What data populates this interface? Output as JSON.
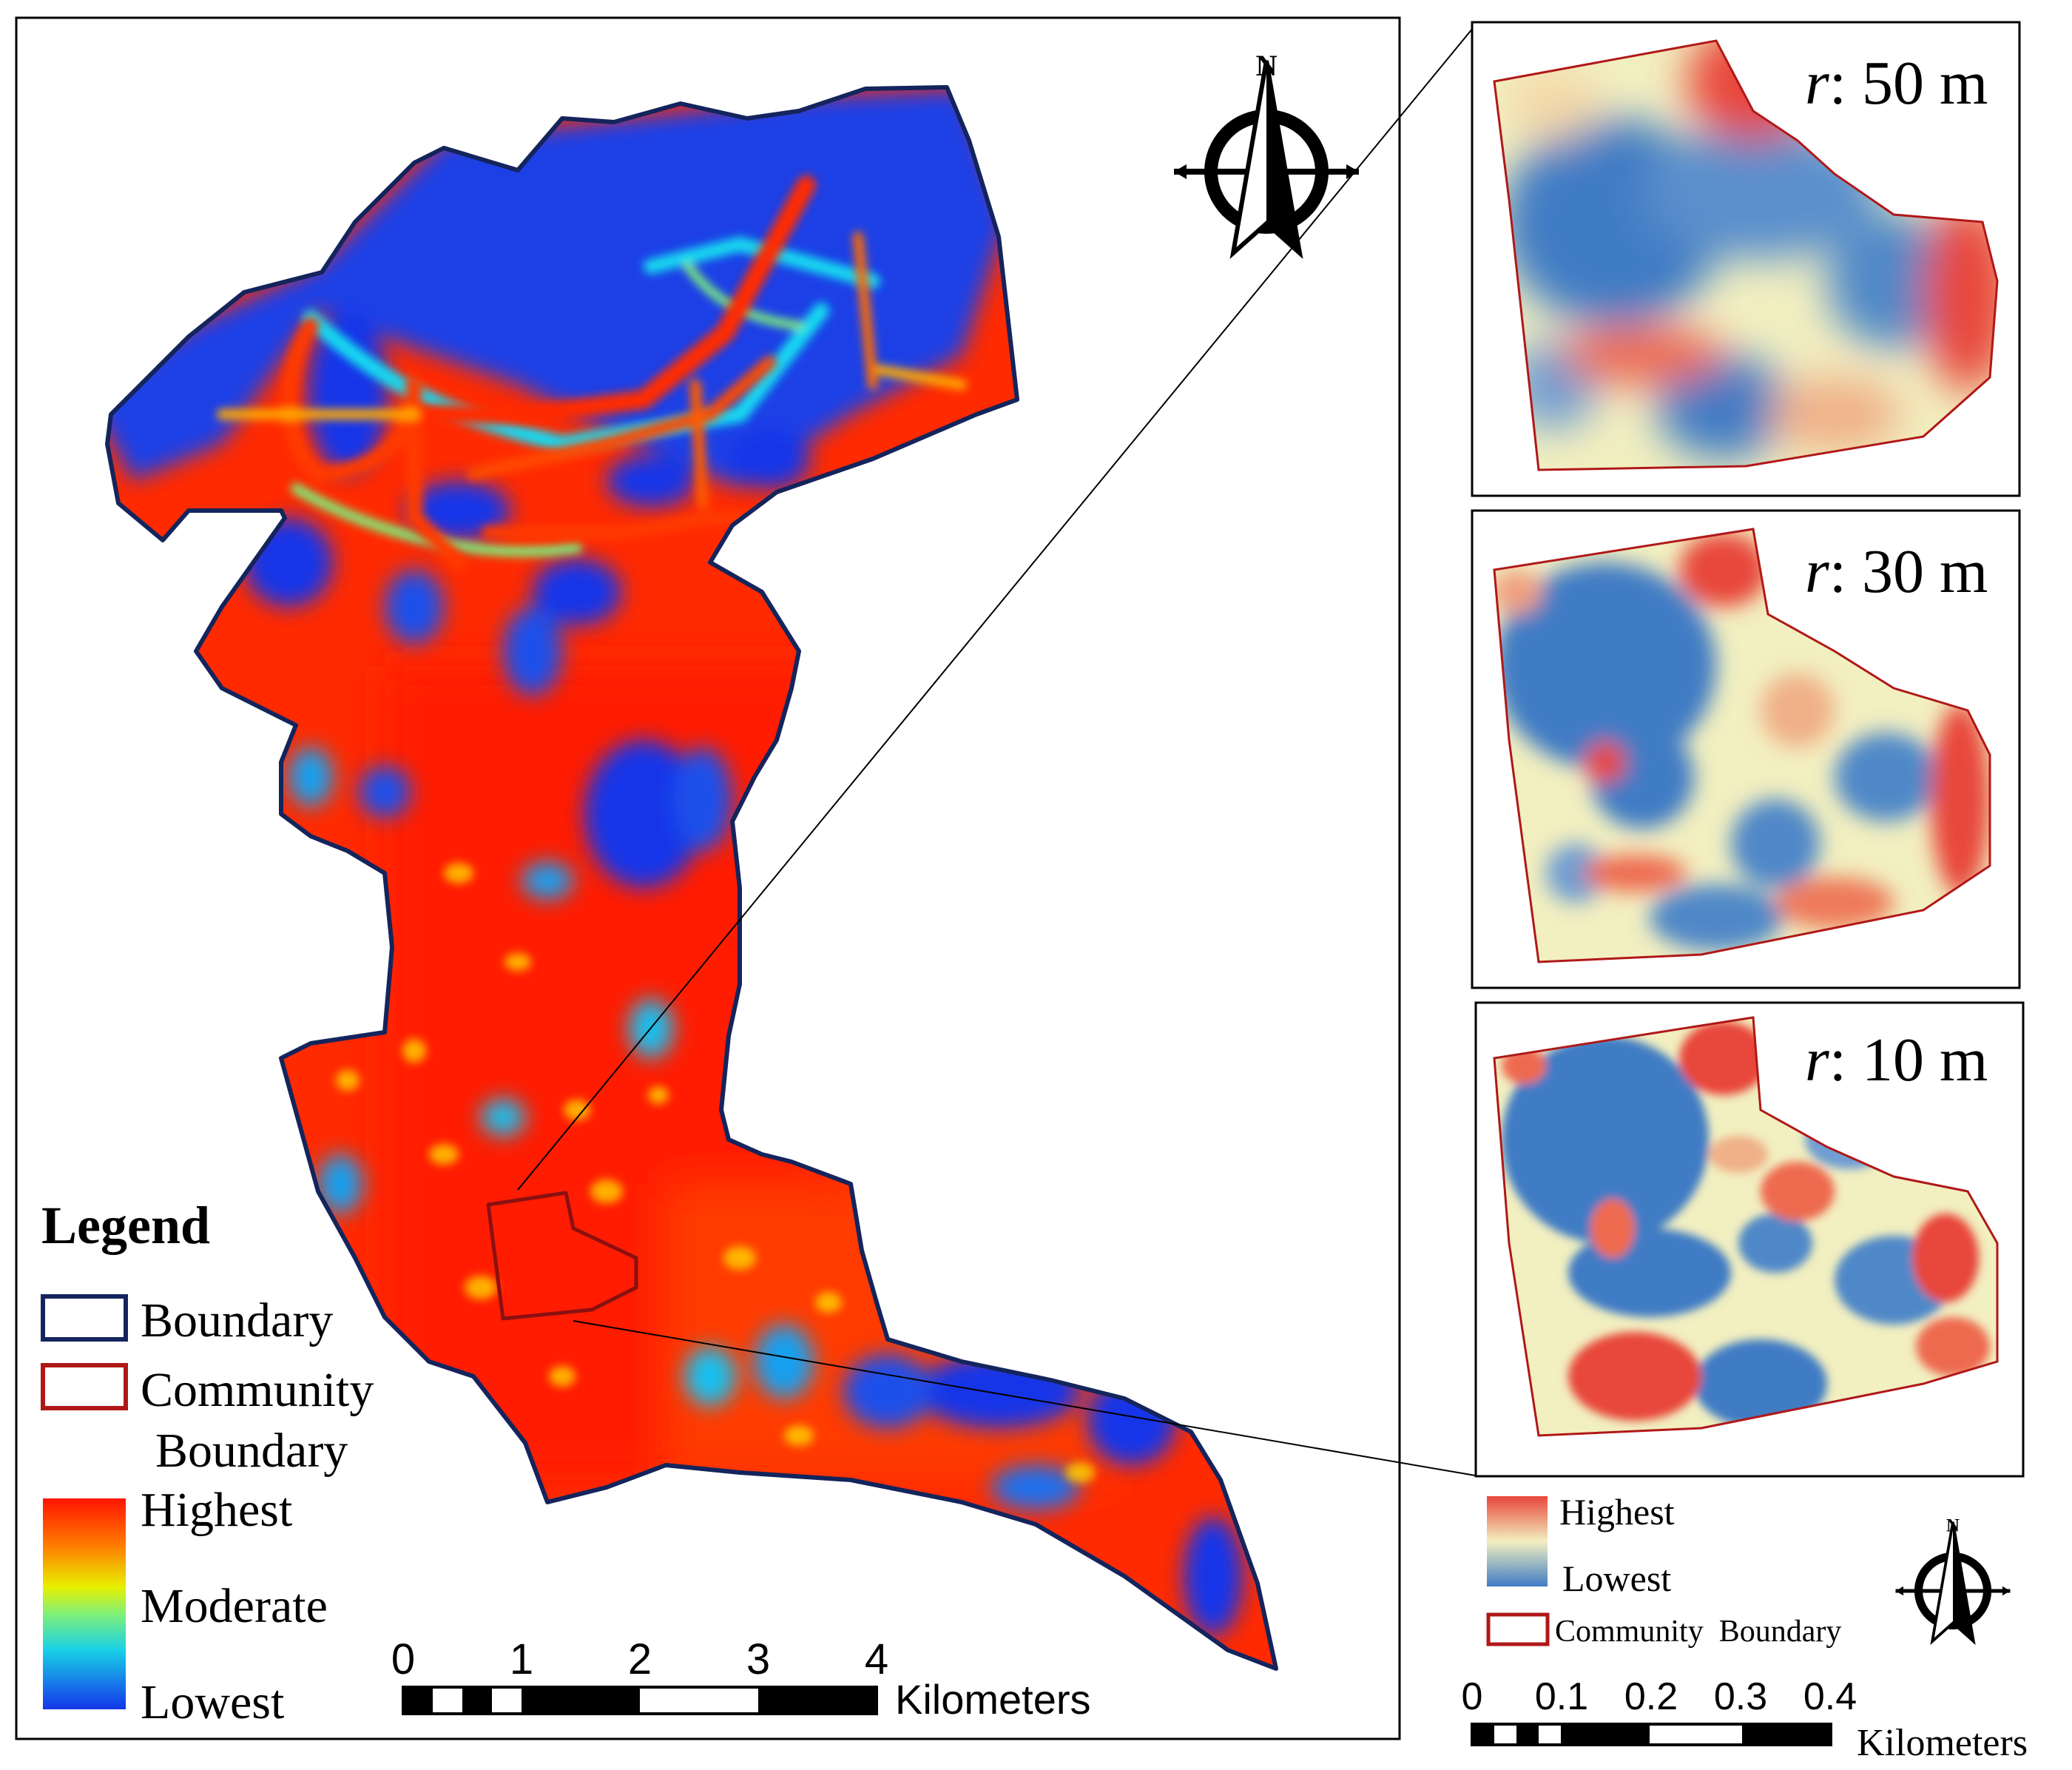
{
  "main_map": {
    "legend": {
      "title": "Legend",
      "boundary_label": "Boundary",
      "community_boundary_line1": "Community",
      "community_boundary_line2": "Boundary",
      "highest": "Highest",
      "moderate": "Moderate",
      "lowest": "Lowest"
    },
    "scale_bar": {
      "ticks": [
        "0",
        "1",
        "2",
        "3",
        "4"
      ],
      "unit": "Kilometers"
    },
    "north_arrow_letter": "N",
    "colors": {
      "lowest": "#1436e8",
      "low": "#19c8f0",
      "moderate": "#7ef07a",
      "high": "#ffd400",
      "highest": "#ff1400",
      "boundary": "#14245c",
      "community_boundary": "#b01818"
    }
  },
  "insets": [
    {
      "r_label": "r",
      "value_label": ": 50 m"
    },
    {
      "r_label": "r",
      "value_label": ": 30 m"
    },
    {
      "r_label": "r",
      "value_label": ": 10 m"
    }
  ],
  "inset_legend": {
    "highest": "Highest",
    "lowest": "Lowest",
    "community_boundary": "Community  Boundary",
    "colors": {
      "highest": "#e8463a",
      "middle": "#f2efc0",
      "lowest": "#3f7cc4"
    }
  },
  "inset_scale_bar": {
    "ticks": [
      "0",
      "0.1",
      "0.2",
      "0.3",
      "0.4"
    ],
    "unit": "Kilometers"
  },
  "inset_north_arrow_letter": "N"
}
